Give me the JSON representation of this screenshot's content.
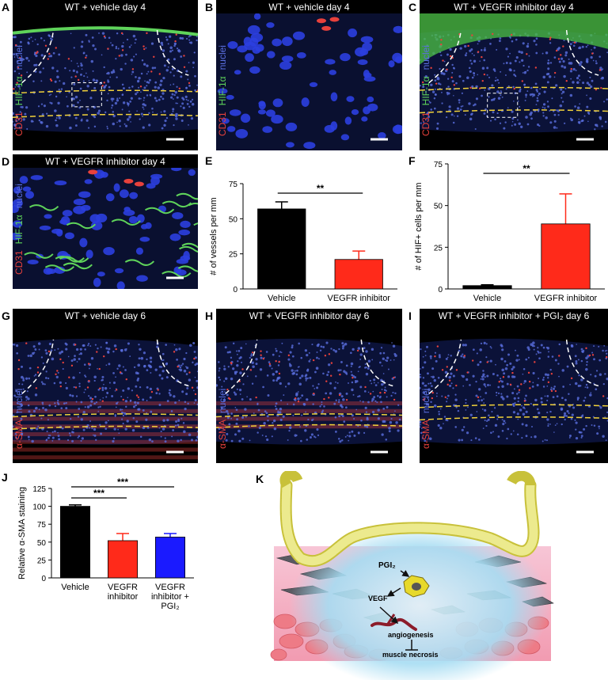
{
  "image_panels": [
    {
      "letter": "A",
      "title": "WT + vehicle day 4",
      "channels": [
        {
          "name": "CD31",
          "color": "#e8413c"
        },
        {
          "name": "HIF-1α",
          "color": "#5fd35a"
        },
        {
          "name": "nuclei",
          "color": "#5a6fe0"
        }
      ]
    },
    {
      "letter": "B",
      "title": "WT + vehicle day 4",
      "channels": [
        {
          "name": "CD31",
          "color": "#e8413c"
        },
        {
          "name": "HIF-1α",
          "color": "#5fd35a"
        },
        {
          "name": "nuclei",
          "color": "#5a6fe0"
        }
      ]
    },
    {
      "letter": "C",
      "title": "WT + VEGFR inhibitor day 4",
      "channels": [
        {
          "name": "CD31",
          "color": "#e8413c"
        },
        {
          "name": "HIF-1α",
          "color": "#5fd35a"
        },
        {
          "name": "nuclei",
          "color": "#5a6fe0"
        }
      ]
    },
    {
      "letter": "D",
      "title": "WT + VEGFR inhibitor day 4",
      "channels": [
        {
          "name": "CD31",
          "color": "#e8413c"
        },
        {
          "name": "HIF-1α",
          "color": "#5fd35a"
        },
        {
          "name": "nuclei",
          "color": "#5a6fe0"
        }
      ]
    },
    {
      "letter": "G",
      "title": "WT + vehicle day 6",
      "channels": [
        {
          "name": "α-SMA",
          "color": "#e8413c"
        },
        {
          "name": "nuclei",
          "color": "#5a6fe0"
        }
      ]
    },
    {
      "letter": "H",
      "title": "WT + VEGFR inhibitor day 6",
      "channels": [
        {
          "name": "α-SMA",
          "color": "#e8413c"
        },
        {
          "name": "nuclei",
          "color": "#5a6fe0"
        }
      ]
    },
    {
      "letter": "I",
      "title": "WT + VEGFR inhibitor + PGI₂ day 6",
      "channels": [
        {
          "name": "α-SMA",
          "color": "#e8413c"
        },
        {
          "name": "nuclei",
          "color": "#5a6fe0"
        }
      ]
    }
  ],
  "chart_data": [
    {
      "letter": "E",
      "type": "bar",
      "y_label": "# of vessels per mm",
      "categories": [
        "Vehicle",
        "VEGFR inhibitor"
      ],
      "values": [
        57,
        21
      ],
      "errors": [
        5,
        6
      ],
      "colors": [
        "#000000",
        "#ff2a1a"
      ],
      "ylim": [
        0,
        75
      ],
      "yticks": [
        0,
        25,
        50,
        75
      ],
      "significance": [
        {
          "label": "**",
          "pair": [
            0,
            1
          ]
        }
      ]
    },
    {
      "letter": "F",
      "type": "bar",
      "y_label": "# of HIF+ cells per mm",
      "categories": [
        "Vehicle",
        "VEGFR inhibitor"
      ],
      "values": [
        2,
        39
      ],
      "errors": [
        0.5,
        18
      ],
      "colors": [
        "#000000",
        "#ff2a1a"
      ],
      "ylim": [
        0,
        75
      ],
      "yticks": [
        0,
        25,
        50,
        75
      ],
      "significance": [
        {
          "label": "**",
          "pair": [
            0,
            1
          ]
        }
      ]
    },
    {
      "letter": "J",
      "type": "bar",
      "y_label": "Relative α-SMA staining",
      "categories": [
        "Vehicle",
        "VEGFR inhibitor",
        "VEGFR inhibitor + PGI₂"
      ],
      "values": [
        100,
        52,
        57
      ],
      "errors": [
        2,
        10,
        5
      ],
      "colors": [
        "#000000",
        "#ff2a1a",
        "#1a1aff"
      ],
      "ylim": [
        0,
        125
      ],
      "yticks": [
        0,
        25,
        50,
        75,
        100,
        125
      ],
      "significance": [
        {
          "label": "***",
          "pair": [
            0,
            1
          ]
        },
        {
          "label": "***",
          "pair": [
            0,
            2
          ]
        }
      ]
    }
  ],
  "diagram": {
    "letter": "K",
    "labels": {
      "pgi2": "PGI₂",
      "vegf": "VEGF",
      "angiogenesis": "angiogenesis",
      "necrosis": "muscle necrosis"
    }
  }
}
